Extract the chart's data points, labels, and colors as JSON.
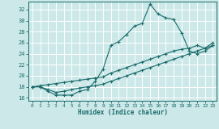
{
  "xlabel": "Humidex (Indice chaleur)",
  "bg_color": "#cce8e8",
  "line_color": "#1a6b6b",
  "grid_color": "#ffffff",
  "xlim": [
    -0.5,
    23.5
  ],
  "ylim": [
    15.5,
    33.5
  ],
  "xticks": [
    0,
    1,
    2,
    3,
    4,
    5,
    6,
    7,
    8,
    9,
    10,
    11,
    12,
    13,
    14,
    15,
    16,
    17,
    18,
    19,
    20,
    21,
    22,
    23
  ],
  "yticks": [
    16,
    18,
    20,
    22,
    24,
    26,
    28,
    30,
    32
  ],
  "line1_x": [
    0,
    1,
    2,
    3,
    4,
    5,
    6,
    7,
    8,
    9,
    10,
    11,
    12,
    13,
    14,
    15,
    16,
    17,
    18,
    19,
    20,
    21,
    22,
    23
  ],
  "line1_y": [
    18,
    18,
    17.2,
    16.5,
    16.5,
    16.5,
    17.2,
    17.5,
    19.0,
    21.2,
    25.5,
    26.2,
    27.5,
    29.0,
    29.5,
    33.0,
    31.2,
    30.5,
    30.2,
    27.8,
    24.5,
    24.0,
    24.5,
    25.5
  ],
  "line2_x": [
    0,
    1,
    2,
    3,
    4,
    5,
    6,
    7,
    8,
    9,
    10,
    11,
    12,
    13,
    14,
    15,
    16,
    17,
    18,
    19,
    20,
    21,
    22,
    23
  ],
  "line2_y": [
    18.0,
    18.2,
    18.4,
    18.6,
    18.8,
    19.0,
    19.2,
    19.4,
    19.6,
    19.8,
    20.5,
    21.0,
    21.5,
    22.0,
    22.5,
    23.0,
    23.5,
    24.0,
    24.5,
    24.8,
    25.0,
    25.5,
    25.0,
    26.0
  ],
  "line3_x": [
    0,
    1,
    2,
    3,
    4,
    5,
    6,
    7,
    8,
    9,
    10,
    11,
    12,
    13,
    14,
    15,
    16,
    17,
    18,
    19,
    20,
    21,
    22,
    23
  ],
  "line3_y": [
    18.0,
    18.0,
    17.5,
    17.0,
    17.2,
    17.5,
    17.8,
    18.0,
    18.2,
    18.5,
    19.0,
    19.5,
    20.0,
    20.5,
    21.0,
    21.5,
    22.0,
    22.5,
    23.0,
    23.5,
    24.0,
    24.5,
    25.0,
    25.5
  ]
}
